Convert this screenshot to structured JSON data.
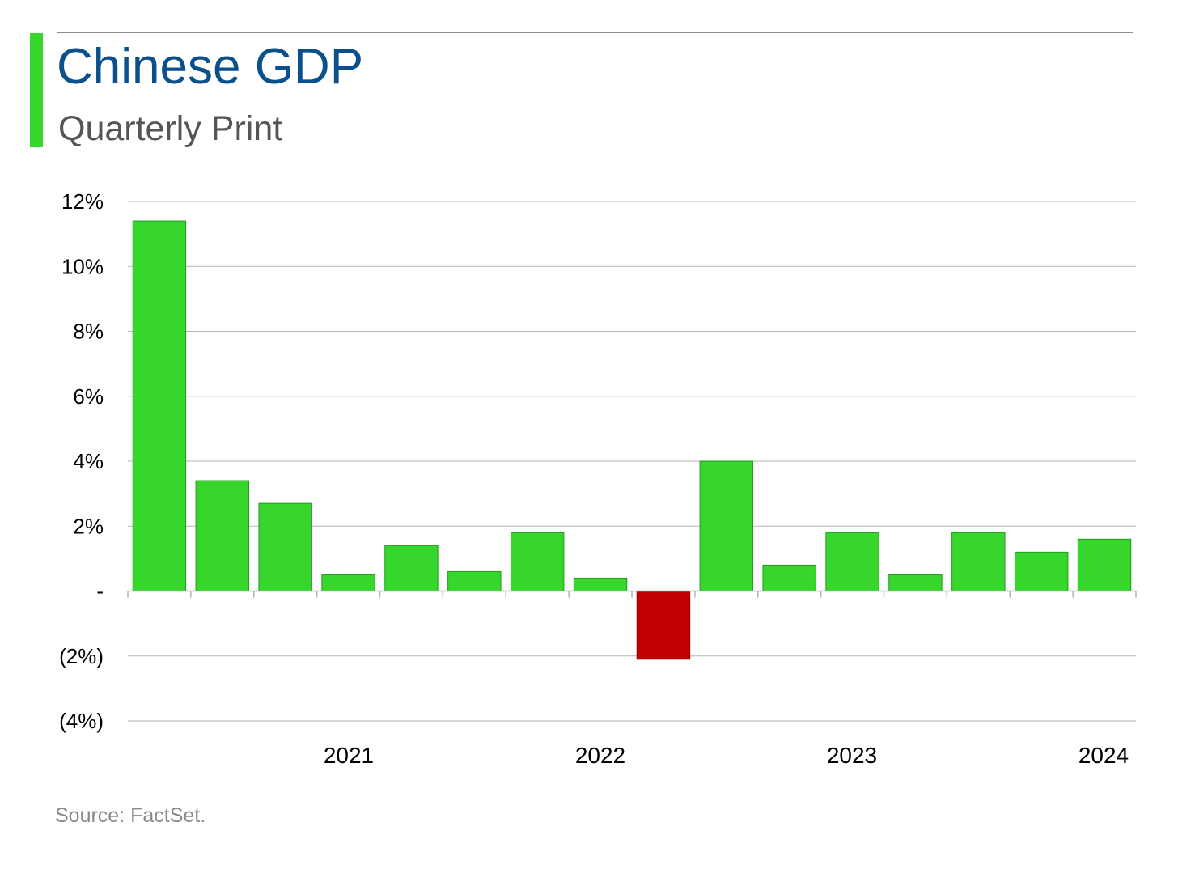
{
  "title": "Chinese GDP",
  "subtitle": "Quarterly Print",
  "source": "Source: FactSet.",
  "colors": {
    "accent": "#36d62c",
    "title": "#0b4f8c",
    "positive": "#36d62c",
    "negative": "#c00000"
  },
  "chart_data": {
    "type": "bar",
    "title": "Chinese GDP",
    "subtitle": "Quarterly Print",
    "xlabel": "",
    "ylabel": "",
    "ylim": [
      -4,
      12
    ],
    "yticks": [
      12,
      10,
      8,
      6,
      4,
      2,
      0,
      -2,
      -4
    ],
    "ytick_labels": [
      "12%",
      "10%",
      "8%",
      "6%",
      "4%",
      "2%",
      "-",
      "(2%)",
      "(4%)"
    ],
    "xtick_labels": [
      "2021",
      "2022",
      "2023",
      "2024"
    ],
    "grid": true,
    "values": [
      11.4,
      3.4,
      2.7,
      0.5,
      1.4,
      0.6,
      1.8,
      0.4,
      -2.1,
      4.0,
      0.8,
      1.8,
      0.5,
      1.8,
      1.2,
      1.6
    ]
  }
}
